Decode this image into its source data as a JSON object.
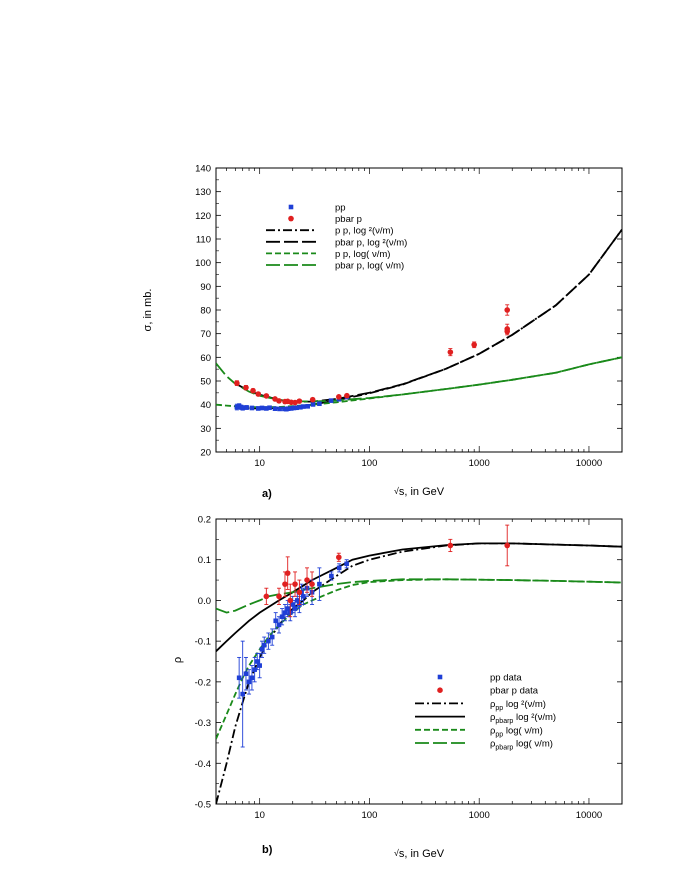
{
  "chart_data": [
    {
      "id": "a",
      "type": "scatter",
      "panel_label": "a)",
      "ylabel": "σ, in mb.",
      "xlabel_sqrt": "√",
      "xlabel": "s, in GeV",
      "xscale": "log",
      "xlim": [
        4,
        20000
      ],
      "ylim": [
        20,
        140
      ],
      "x_ticks": [
        10,
        100,
        1000,
        10000
      ],
      "x_tick_labels": [
        "10",
        "100",
        "1000",
        "10000"
      ],
      "y_ticks": [
        20,
        30,
        40,
        50,
        60,
        70,
        80,
        90,
        100,
        110,
        120,
        130,
        140
      ],
      "y_tick_labels": [
        "20",
        "30",
        "40",
        "50",
        "60",
        "70",
        "80",
        "90",
        "100",
        "110",
        "120",
        "130",
        "140"
      ],
      "legend": [
        {
          "label": "pp",
          "kind": "square",
          "color": "#1f3fd6"
        },
        {
          "label": "pbar p",
          "kind": "circle",
          "color": "#e02020"
        },
        {
          "label": "p p,     log  ²(ν/m)",
          "kind": "dashdot",
          "color": "#000000"
        },
        {
          "label": "pbar p, log  ²(ν/m)",
          "kind": "longdash",
          "color": "#000000"
        },
        {
          "label": "p p,      log( ν/m)",
          "kind": "shortdash",
          "color": "#1a8a1a"
        },
        {
          "label": "pbar p, log(  ν/m)",
          "kind": "longdash",
          "color": "#1a8a1a"
        }
      ],
      "series": [
        {
          "name": "pp",
          "type": "points",
          "marker": "square",
          "color": "#1f3fd6",
          "x": [
            6.2,
            6.5,
            6.8,
            7.0,
            7.6,
            8.5,
            9.7,
            10.5,
            11.5,
            12.3,
            13.8,
            15.2,
            16.8,
            17.5,
            18.2,
            19.4,
            20.5,
            21.7,
            23.5,
            25.0,
            27.4,
            30.6,
            35.0,
            44.7,
            52.8,
            62.5
          ],
          "y": [
            39.0,
            39.4,
            38.9,
            38.6,
            38.8,
            38.6,
            38.4,
            38.6,
            38.4,
            38.7,
            38.3,
            38.2,
            38.2,
            38.1,
            38.3,
            38.4,
            38.6,
            38.7,
            38.9,
            39.2,
            39.3,
            40.1,
            40.4,
            41.7,
            42.3,
            43.2
          ],
          "err": [
            1.2,
            1.0,
            0.9,
            0.9,
            0.8,
            0.7,
            0.7,
            0.7,
            0.6,
            0.6,
            0.6,
            0.6,
            0.6,
            0.8,
            0.6,
            0.5,
            0.5,
            0.5,
            0.5,
            0.4,
            0.4,
            0.4,
            0.4,
            0.4,
            0.4,
            0.5
          ]
        },
        {
          "name": "pbar p",
          "type": "points",
          "marker": "circle",
          "color": "#e02020",
          "x": [
            6.2,
            7.5,
            8.7,
            9.7,
            11.5,
            13.8,
            15.0,
            17.0,
            18.0,
            19.4,
            21.0,
            23.0,
            30.4,
            52.6,
            62.3,
            546,
            900,
            1800,
            1800,
            1800
          ],
          "y": [
            49.1,
            47.2,
            45.9,
            44.5,
            43.7,
            42.4,
            41.6,
            41.3,
            41.4,
            41.0,
            40.9,
            41.5,
            42.1,
            43.3,
            43.8,
            62.2,
            65.3,
            72.0,
            71.0,
            80.0
          ],
          "err": [
            1.0,
            0.9,
            0.8,
            0.7,
            0.6,
            0.5,
            0.6,
            0.5,
            0.5,
            0.6,
            0.5,
            0.6,
            0.7,
            0.5,
            0.6,
            1.5,
            1.2,
            2.0,
            1.5,
            2.2
          ]
        },
        {
          "name": "pp, log²(ν/m)",
          "type": "line",
          "style": "dashdot",
          "color": "#000000",
          "x": [
            6,
            8,
            10,
            15,
            20,
            30,
            50,
            100,
            200,
            500,
            1000,
            2000,
            5000,
            10000,
            20000
          ],
          "y": [
            38.9,
            38.5,
            38.4,
            38.6,
            39.0,
            40.0,
            41.8,
            44.8,
            48.5,
            55.2,
            61.5,
            69.5,
            82.0,
            95.0,
            114.0
          ]
        },
        {
          "name": "pbar p, log²(ν/m)",
          "type": "line",
          "style": "longdash",
          "color": "#000000",
          "x": [
            6,
            8,
            10,
            15,
            20,
            30,
            50,
            100,
            200,
            500,
            1000,
            2000,
            5000,
            10000,
            20000
          ],
          "y": [
            49.0,
            45.8,
            44.2,
            42.0,
            41.3,
            41.3,
            42.4,
            45.0,
            48.6,
            55.2,
            61.5,
            69.5,
            82.0,
            95.0,
            114.0
          ]
        },
        {
          "name": "pp, log(ν/m)",
          "type": "line",
          "style": "shortdash",
          "color": "#1a8a1a",
          "x": [
            4,
            5,
            6,
            8,
            10,
            15,
            20,
            30,
            50,
            100,
            200,
            500,
            1000,
            2000,
            5000,
            10000,
            20000
          ],
          "y": [
            40.0,
            39.6,
            39.3,
            39.0,
            38.9,
            39.0,
            39.4,
            40.0,
            41.0,
            42.6,
            44.3,
            46.6,
            48.5,
            50.5,
            53.5,
            57.0,
            60.0
          ]
        },
        {
          "name": "pbar p, log(ν/m)",
          "type": "line",
          "style": "longdash",
          "color": "#1a8a1a",
          "x": [
            4,
            5,
            6,
            8,
            10,
            15,
            20,
            30,
            50,
            100,
            200,
            500,
            1000,
            2000,
            5000,
            10000,
            20000
          ],
          "y": [
            57.5,
            52.0,
            48.8,
            45.5,
            43.8,
            42.0,
            41.5,
            41.3,
            41.8,
            42.8,
            44.3,
            46.6,
            48.5,
            50.5,
            53.5,
            57.0,
            60.0
          ]
        }
      ]
    },
    {
      "id": "b",
      "type": "scatter",
      "panel_label": "b)",
      "ylabel": "ρ",
      "xlabel_sqrt": "√",
      "xlabel": "s, in GeV",
      "xscale": "log",
      "xlim": [
        4,
        20000
      ],
      "ylim": [
        -0.5,
        0.2
      ],
      "x_ticks": [
        10,
        100,
        1000,
        10000
      ],
      "x_tick_labels": [
        "10",
        "100",
        "1000",
        "10000"
      ],
      "y_ticks": [
        -0.5,
        -0.4,
        -0.3,
        -0.2,
        -0.1,
        0.0,
        0.1,
        0.2
      ],
      "y_tick_labels": [
        "-0.5",
        "-0.4",
        "-0.3",
        "-0.2",
        "-0.1",
        "0.0",
        "0.1",
        "0.2"
      ],
      "legend": [
        {
          "label": "pp       data",
          "kind": "square",
          "color": "#1f3fd6"
        },
        {
          "label": "pbar p data",
          "kind": "circle",
          "color": "#e02020"
        },
        {
          "label": "ρpp   log ²(ν/m)",
          "main": "ρ",
          "sub": "pp",
          "tail": "   log ²(ν/m)",
          "kind": "dashdot",
          "color": "#000000"
        },
        {
          "label": "ρpbarp log ²(ν/m)",
          "main": "ρ",
          "sub": "pbarp",
          "tail": " log ²(ν/m)",
          "kind": "solid",
          "color": "#000000"
        },
        {
          "label": "ρpp   log( ν/m)",
          "main": "ρ",
          "sub": "pp",
          "tail": "   log( ν/m)",
          "kind": "shortdash",
          "color": "#1a8a1a"
        },
        {
          "label": "ρpbarp log( ν/m)",
          "main": "ρ",
          "sub": "pbarp",
          "tail": " log( ν/m)",
          "kind": "longdash",
          "color": "#1a8a1a"
        }
      ],
      "series": [
        {
          "name": "pp data",
          "type": "points",
          "marker": "square",
          "color": "#1f3fd6",
          "x": [
            6.5,
            7.0,
            7.5,
            8.0,
            8.5,
            9.0,
            9.5,
            10.0,
            10.5,
            11.0,
            12.0,
            13.0,
            14.0,
            15.0,
            16.0,
            17.0,
            18.0,
            19.0,
            20.0,
            21.0,
            22.0,
            23.0,
            24.0,
            25.0,
            27.0,
            30.0,
            35.0,
            45.0,
            53.0,
            62.0
          ],
          "y": [
            -0.19,
            -0.23,
            -0.18,
            -0.2,
            -0.19,
            -0.17,
            -0.15,
            -0.16,
            -0.12,
            -0.11,
            -0.1,
            -0.09,
            -0.05,
            -0.06,
            -0.04,
            -0.03,
            -0.02,
            -0.03,
            -0.01,
            -0.02,
            0.0,
            -0.01,
            0.02,
            0.01,
            0.03,
            0.02,
            0.04,
            0.06,
            0.08,
            0.09
          ],
          "err": [
            0.05,
            0.13,
            0.04,
            0.03,
            0.03,
            0.03,
            0.02,
            0.03,
            0.02,
            0.02,
            0.02,
            0.02,
            0.02,
            0.02,
            0.02,
            0.02,
            0.02,
            0.02,
            0.02,
            0.02,
            0.02,
            0.02,
            0.02,
            0.02,
            0.02,
            0.03,
            0.04,
            0.01,
            0.01,
            0.01
          ]
        },
        {
          "name": "pbar p data",
          "type": "points",
          "marker": "circle",
          "color": "#e02020",
          "x": [
            11.5,
            15.0,
            17.0,
            18.0,
            19.0,
            21.0,
            23.0,
            27.0,
            30.0,
            52.6,
            546,
            1800
          ],
          "y": [
            0.01,
            0.01,
            0.04,
            0.067,
            0.0,
            0.04,
            0.02,
            0.05,
            0.04,
            0.106,
            0.135,
            0.135
          ],
          "err": [
            0.02,
            0.02,
            0.03,
            0.04,
            0.04,
            0.03,
            0.03,
            0.03,
            0.03,
            0.01,
            0.015,
            0.05
          ]
        },
        {
          "name": "ρpp log²(ν/m)",
          "type": "line",
          "style": "dashdot",
          "color": "#000000",
          "x": [
            4,
            5,
            6,
            7,
            8,
            10,
            12,
            15,
            20,
            25,
            30,
            50,
            70,
            100,
            200,
            500,
            1000,
            2000,
            5000,
            10000,
            20000
          ],
          "y": [
            -0.5,
            -0.4,
            -0.31,
            -0.25,
            -0.2,
            -0.14,
            -0.1,
            -0.06,
            -0.02,
            0.0,
            0.02,
            0.06,
            0.085,
            0.1,
            0.12,
            0.135,
            0.14,
            0.14,
            0.137,
            0.135,
            0.132
          ]
        },
        {
          "name": "ρpbarp log²(ν/m)",
          "type": "line",
          "style": "solid",
          "color": "#000000",
          "x": [
            4,
            5,
            6,
            8,
            10,
            15,
            20,
            30,
            50,
            70,
            100,
            200,
            500,
            1000,
            2000,
            5000,
            10000,
            20000
          ],
          "y": [
            -0.125,
            -0.1,
            -0.08,
            -0.05,
            -0.03,
            0.0,
            0.02,
            0.05,
            0.08,
            0.1,
            0.11,
            0.125,
            0.136,
            0.14,
            0.14,
            0.137,
            0.135,
            0.132
          ]
        },
        {
          "name": "ρpp log(ν/m)",
          "type": "line",
          "style": "shortdash",
          "color": "#1a8a1a",
          "x": [
            4,
            5,
            6,
            7,
            8,
            10,
            12,
            15,
            20,
            25,
            30,
            50,
            70,
            100,
            200,
            500,
            1000,
            2000,
            5000,
            10000,
            20000
          ],
          "y": [
            -0.34,
            -0.28,
            -0.23,
            -0.19,
            -0.16,
            -0.12,
            -0.09,
            -0.06,
            -0.03,
            -0.01,
            0.0,
            0.025,
            0.038,
            0.045,
            0.05,
            0.052,
            0.051,
            0.05,
            0.048,
            0.046,
            0.044
          ]
        },
        {
          "name": "ρpbarp log(ν/m)",
          "type": "line",
          "style": "longdash",
          "color": "#1a8a1a",
          "x": [
            4,
            5,
            6,
            8,
            10,
            12,
            15,
            20,
            30,
            50,
            70,
            100,
            200,
            500,
            1000,
            2000,
            5000,
            10000,
            20000
          ],
          "y": [
            -0.02,
            -0.03,
            -0.025,
            -0.01,
            0.0,
            0.01,
            0.015,
            0.02,
            0.03,
            0.04,
            0.045,
            0.048,
            0.052,
            0.052,
            0.051,
            0.05,
            0.048,
            0.046,
            0.044
          ]
        }
      ]
    }
  ]
}
